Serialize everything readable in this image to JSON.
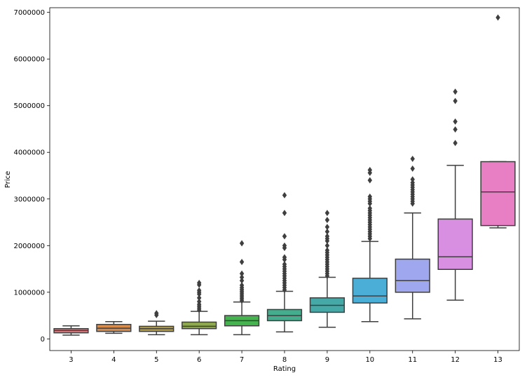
{
  "chart_data": {
    "type": "boxplot",
    "title": "",
    "xlabel": "Rating",
    "ylabel": "Price",
    "ylim": [
      -250000,
      7100000
    ],
    "yticks": [
      0,
      1000000,
      2000000,
      3000000,
      4000000,
      5000000,
      6000000,
      7000000
    ],
    "ytick_labels": [
      "0",
      "1000000",
      "2000000",
      "3000000",
      "4000000",
      "5000000",
      "6000000",
      "7000000"
    ],
    "categories": [
      "3",
      "4",
      "5",
      "6",
      "7",
      "8",
      "9",
      "10",
      "11",
      "12",
      "13"
    ],
    "boxes": [
      {
        "name": "3",
        "color": "#e1777e",
        "whisker_low": 80000,
        "q1": 130000,
        "median": 180000,
        "q3": 220000,
        "whisker_high": 280000,
        "outliers": []
      },
      {
        "name": "4",
        "color": "#d98b4a",
        "whisker_low": 120000,
        "q1": 160000,
        "median": 230000,
        "q3": 310000,
        "whisker_high": 370000,
        "outliers": []
      },
      {
        "name": "5",
        "color": "#b39e46",
        "whisker_low": 90000,
        "q1": 160000,
        "median": 220000,
        "q3": 270000,
        "whisker_high": 380000,
        "outliers": [
          510000,
          550000
        ]
      },
      {
        "name": "6",
        "color": "#8fac4a",
        "whisker_low": 90000,
        "q1": 220000,
        "median": 270000,
        "q3": 360000,
        "whisker_high": 590000,
        "outliers": [
          620000,
          660000,
          700000,
          740000,
          800000,
          880000,
          960000,
          1000000,
          1040000,
          1160000,
          1200000
        ]
      },
      {
        "name": "7",
        "color": "#43b44e",
        "whisker_low": 90000,
        "q1": 280000,
        "median": 390000,
        "q3": 500000,
        "whisker_high": 790000,
        "outliers": [
          820000,
          860000,
          900000,
          940000,
          980000,
          1020000,
          1060000,
          1100000,
          1150000,
          1250000,
          1320000,
          1400000,
          1650000,
          2050000
        ]
      },
      {
        "name": "8",
        "color": "#44ad8d",
        "whisker_low": 150000,
        "q1": 390000,
        "median": 500000,
        "q3": 630000,
        "whisker_high": 1020000,
        "outliers": [
          1050000,
          1100000,
          1150000,
          1200000,
          1250000,
          1300000,
          1350000,
          1400000,
          1450000,
          1500000,
          1550000,
          1600000,
          1700000,
          1750000,
          1950000,
          2000000,
          2200000,
          2700000,
          3080000
        ]
      },
      {
        "name": "9",
        "color": "#45a9a8",
        "whisker_low": 250000,
        "q1": 570000,
        "median": 720000,
        "q3": 880000,
        "whisker_high": 1320000,
        "outliers": [
          1350000,
          1400000,
          1450000,
          1500000,
          1550000,
          1600000,
          1650000,
          1700000,
          1750000,
          1800000,
          1850000,
          1900000,
          2000000,
          2100000,
          2150000,
          2200000,
          2300000,
          2400000,
          2550000,
          2700000
        ]
      },
      {
        "name": "10",
        "color": "#4aaed6",
        "whisker_low": 370000,
        "q1": 770000,
        "median": 920000,
        "q3": 1300000,
        "whisker_high": 2090000,
        "outliers": [
          2150000,
          2200000,
          2250000,
          2300000,
          2350000,
          2400000,
          2450000,
          2500000,
          2550000,
          2600000,
          2650000,
          2700000,
          2750000,
          2800000,
          2900000,
          2950000,
          3000000,
          3050000,
          3400000,
          3560000,
          3620000
        ]
      },
      {
        "name": "11",
        "color": "#9fa8ef",
        "whisker_low": 430000,
        "q1": 1000000,
        "median": 1250000,
        "q3": 1710000,
        "whisker_high": 2700000,
        "outliers": [
          2900000,
          2950000,
          3000000,
          3050000,
          3100000,
          3150000,
          3200000,
          3250000,
          3300000,
          3350000,
          3420000,
          3650000,
          3860000
        ]
      },
      {
        "name": "12",
        "color": "#d88fe2",
        "whisker_low": 830000,
        "q1": 1490000,
        "median": 1760000,
        "q3": 2570000,
        "whisker_high": 3720000,
        "outliers": [
          4200000,
          4490000,
          4660000,
          5100000,
          5300000
        ]
      },
      {
        "name": "13",
        "color": "#e87fc5",
        "whisker_low": 2380000,
        "q1": 2430000,
        "median": 3150000,
        "q3": 3800000,
        "whisker_high": 3800000,
        "outliers": [
          6890000
        ]
      }
    ]
  }
}
